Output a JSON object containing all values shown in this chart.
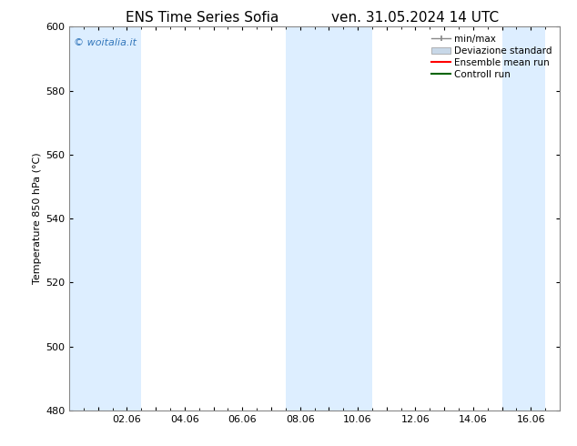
{
  "title_left": "ENS Time Series Sofia",
  "title_right": "ven. 31.05.2024 14 UTC",
  "ylabel": "Temperature 850 hPa (°C)",
  "ylim": [
    480,
    600
  ],
  "yticks": [
    480,
    500,
    520,
    540,
    560,
    580,
    600
  ],
  "xlim": [
    0.0,
    16.5
  ],
  "xtick_positions": [
    1.0,
    2.0,
    3.0,
    4.0,
    5.0,
    6.0,
    7.0,
    8.0,
    9.0,
    10.0,
    11.0,
    12.0,
    13.0,
    14.0,
    15.0,
    16.0
  ],
  "xtick_labels": [
    "",
    "02.06",
    "",
    "04.06",
    "",
    "06.06",
    "",
    "08.06",
    "",
    "10.06",
    "",
    "12.06",
    "",
    "14.06",
    "",
    "16.06"
  ],
  "shaded_bands": [
    {
      "x_start": 0.0,
      "x_end": 2.5,
      "color": "#ddeeff"
    },
    {
      "x_start": 7.5,
      "x_end": 10.5,
      "color": "#ddeeff"
    },
    {
      "x_start": 15.0,
      "x_end": 16.5,
      "color": "#ddeeff"
    }
  ],
  "watermark_text": "© woitalia.it",
  "watermark_color": "#3377bb",
  "legend_items": [
    {
      "label": "min/max",
      "color": "#888888",
      "type": "errorbar"
    },
    {
      "label": "Deviazione standard",
      "color": "#c8d8e8",
      "type": "rect"
    },
    {
      "label": "Ensemble mean run",
      "color": "red",
      "type": "line"
    },
    {
      "label": "Controll run",
      "color": "darkgreen",
      "type": "line"
    }
  ],
  "background_color": "#ffffff",
  "spine_color": "#888888",
  "title_fontsize": 11,
  "axis_fontsize": 8,
  "tick_fontsize": 8,
  "legend_fontsize": 7.5,
  "watermark_fontsize": 8
}
